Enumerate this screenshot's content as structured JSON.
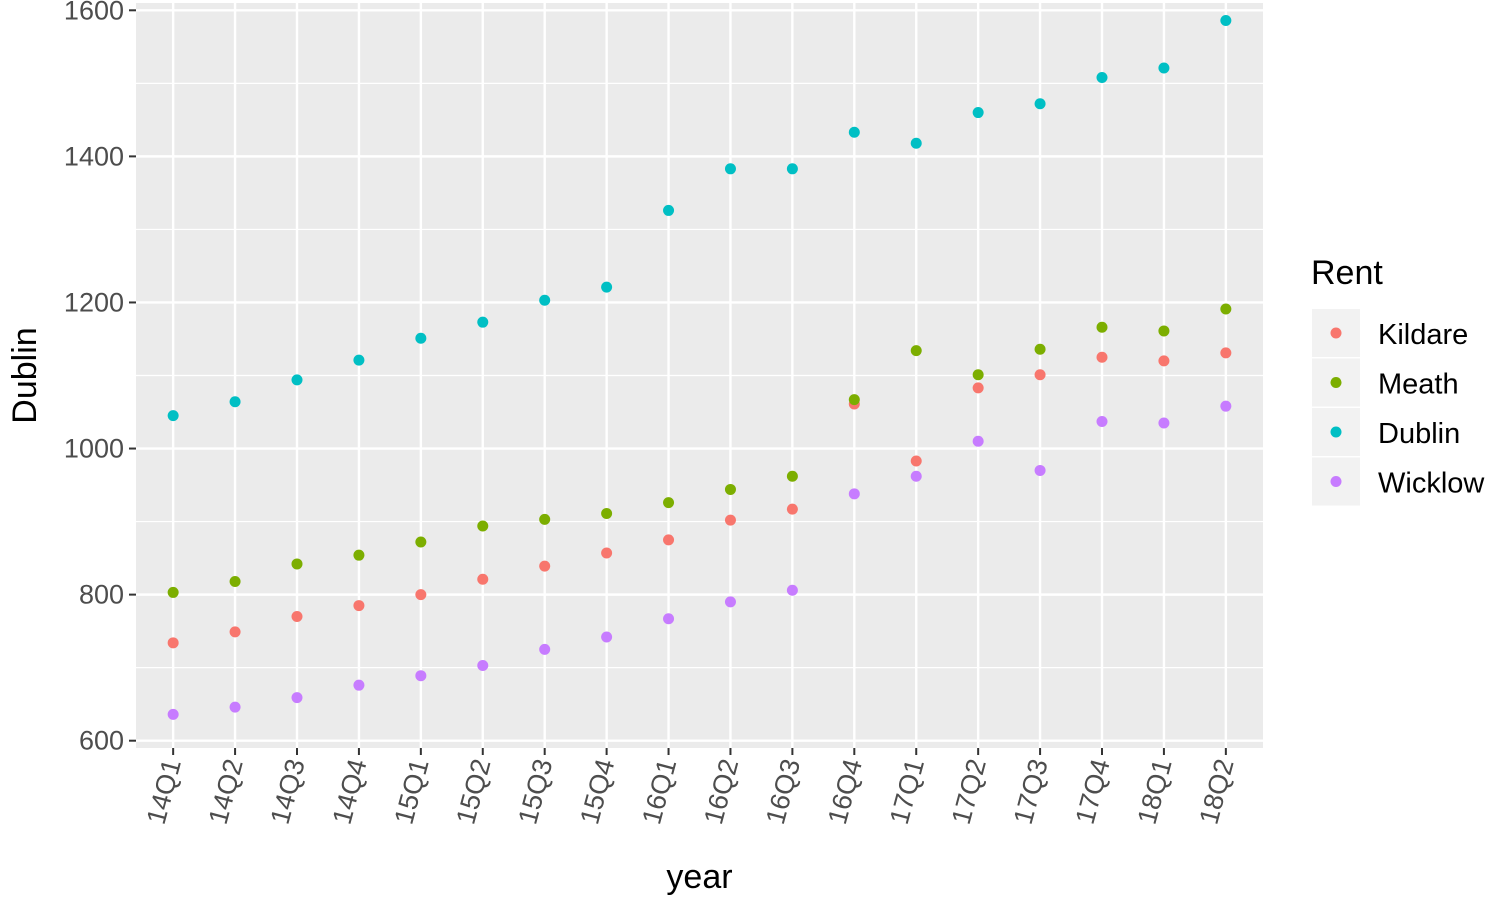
{
  "chart_data": {
    "type": "scatter",
    "xlabel": "year",
    "ylabel": "Dublin",
    "categories": [
      "14Q1",
      "14Q2",
      "14Q3",
      "14Q4",
      "15Q1",
      "15Q2",
      "15Q3",
      "15Q4",
      "16Q1",
      "16Q2",
      "16Q3",
      "16Q4",
      "17Q1",
      "17Q2",
      "17Q3",
      "17Q4",
      "18Q1",
      "18Q2"
    ],
    "ylim": [
      590,
      1610
    ],
    "yticks": [
      600,
      800,
      1000,
      1200,
      1400,
      1600
    ],
    "grid": true,
    "legend": {
      "title": "Rent",
      "placement": "right"
    },
    "series": [
      {
        "name": "Kildare",
        "color": "#F8766D",
        "values": [
          734,
          749,
          770,
          785,
          800,
          821,
          839,
          857,
          875,
          902,
          917,
          1061,
          983,
          1083,
          1101,
          1125,
          1120,
          1131
        ]
      },
      {
        "name": "Meath",
        "color": "#7CAE00",
        "values": [
          803,
          818,
          842,
          854,
          872,
          894,
          903,
          911,
          926,
          944,
          962,
          1067,
          1134,
          1101,
          1136,
          1166,
          1161,
          1191
        ]
      },
      {
        "name": "Dublin",
        "color": "#00BFC4",
        "values": [
          1045,
          1064,
          1094,
          1121,
          1151,
          1173,
          1203,
          1221,
          1326,
          1383,
          1383,
          1433,
          1418,
          1460,
          1472,
          1508,
          1521,
          1586
        ]
      },
      {
        "name": "Wicklow",
        "color": "#C77CFF",
        "values": [
          636,
          646,
          659,
          676,
          689,
          703,
          725,
          742,
          767,
          790,
          806,
          938,
          962,
          1010,
          970,
          1037,
          1035,
          1058
        ]
      }
    ]
  }
}
